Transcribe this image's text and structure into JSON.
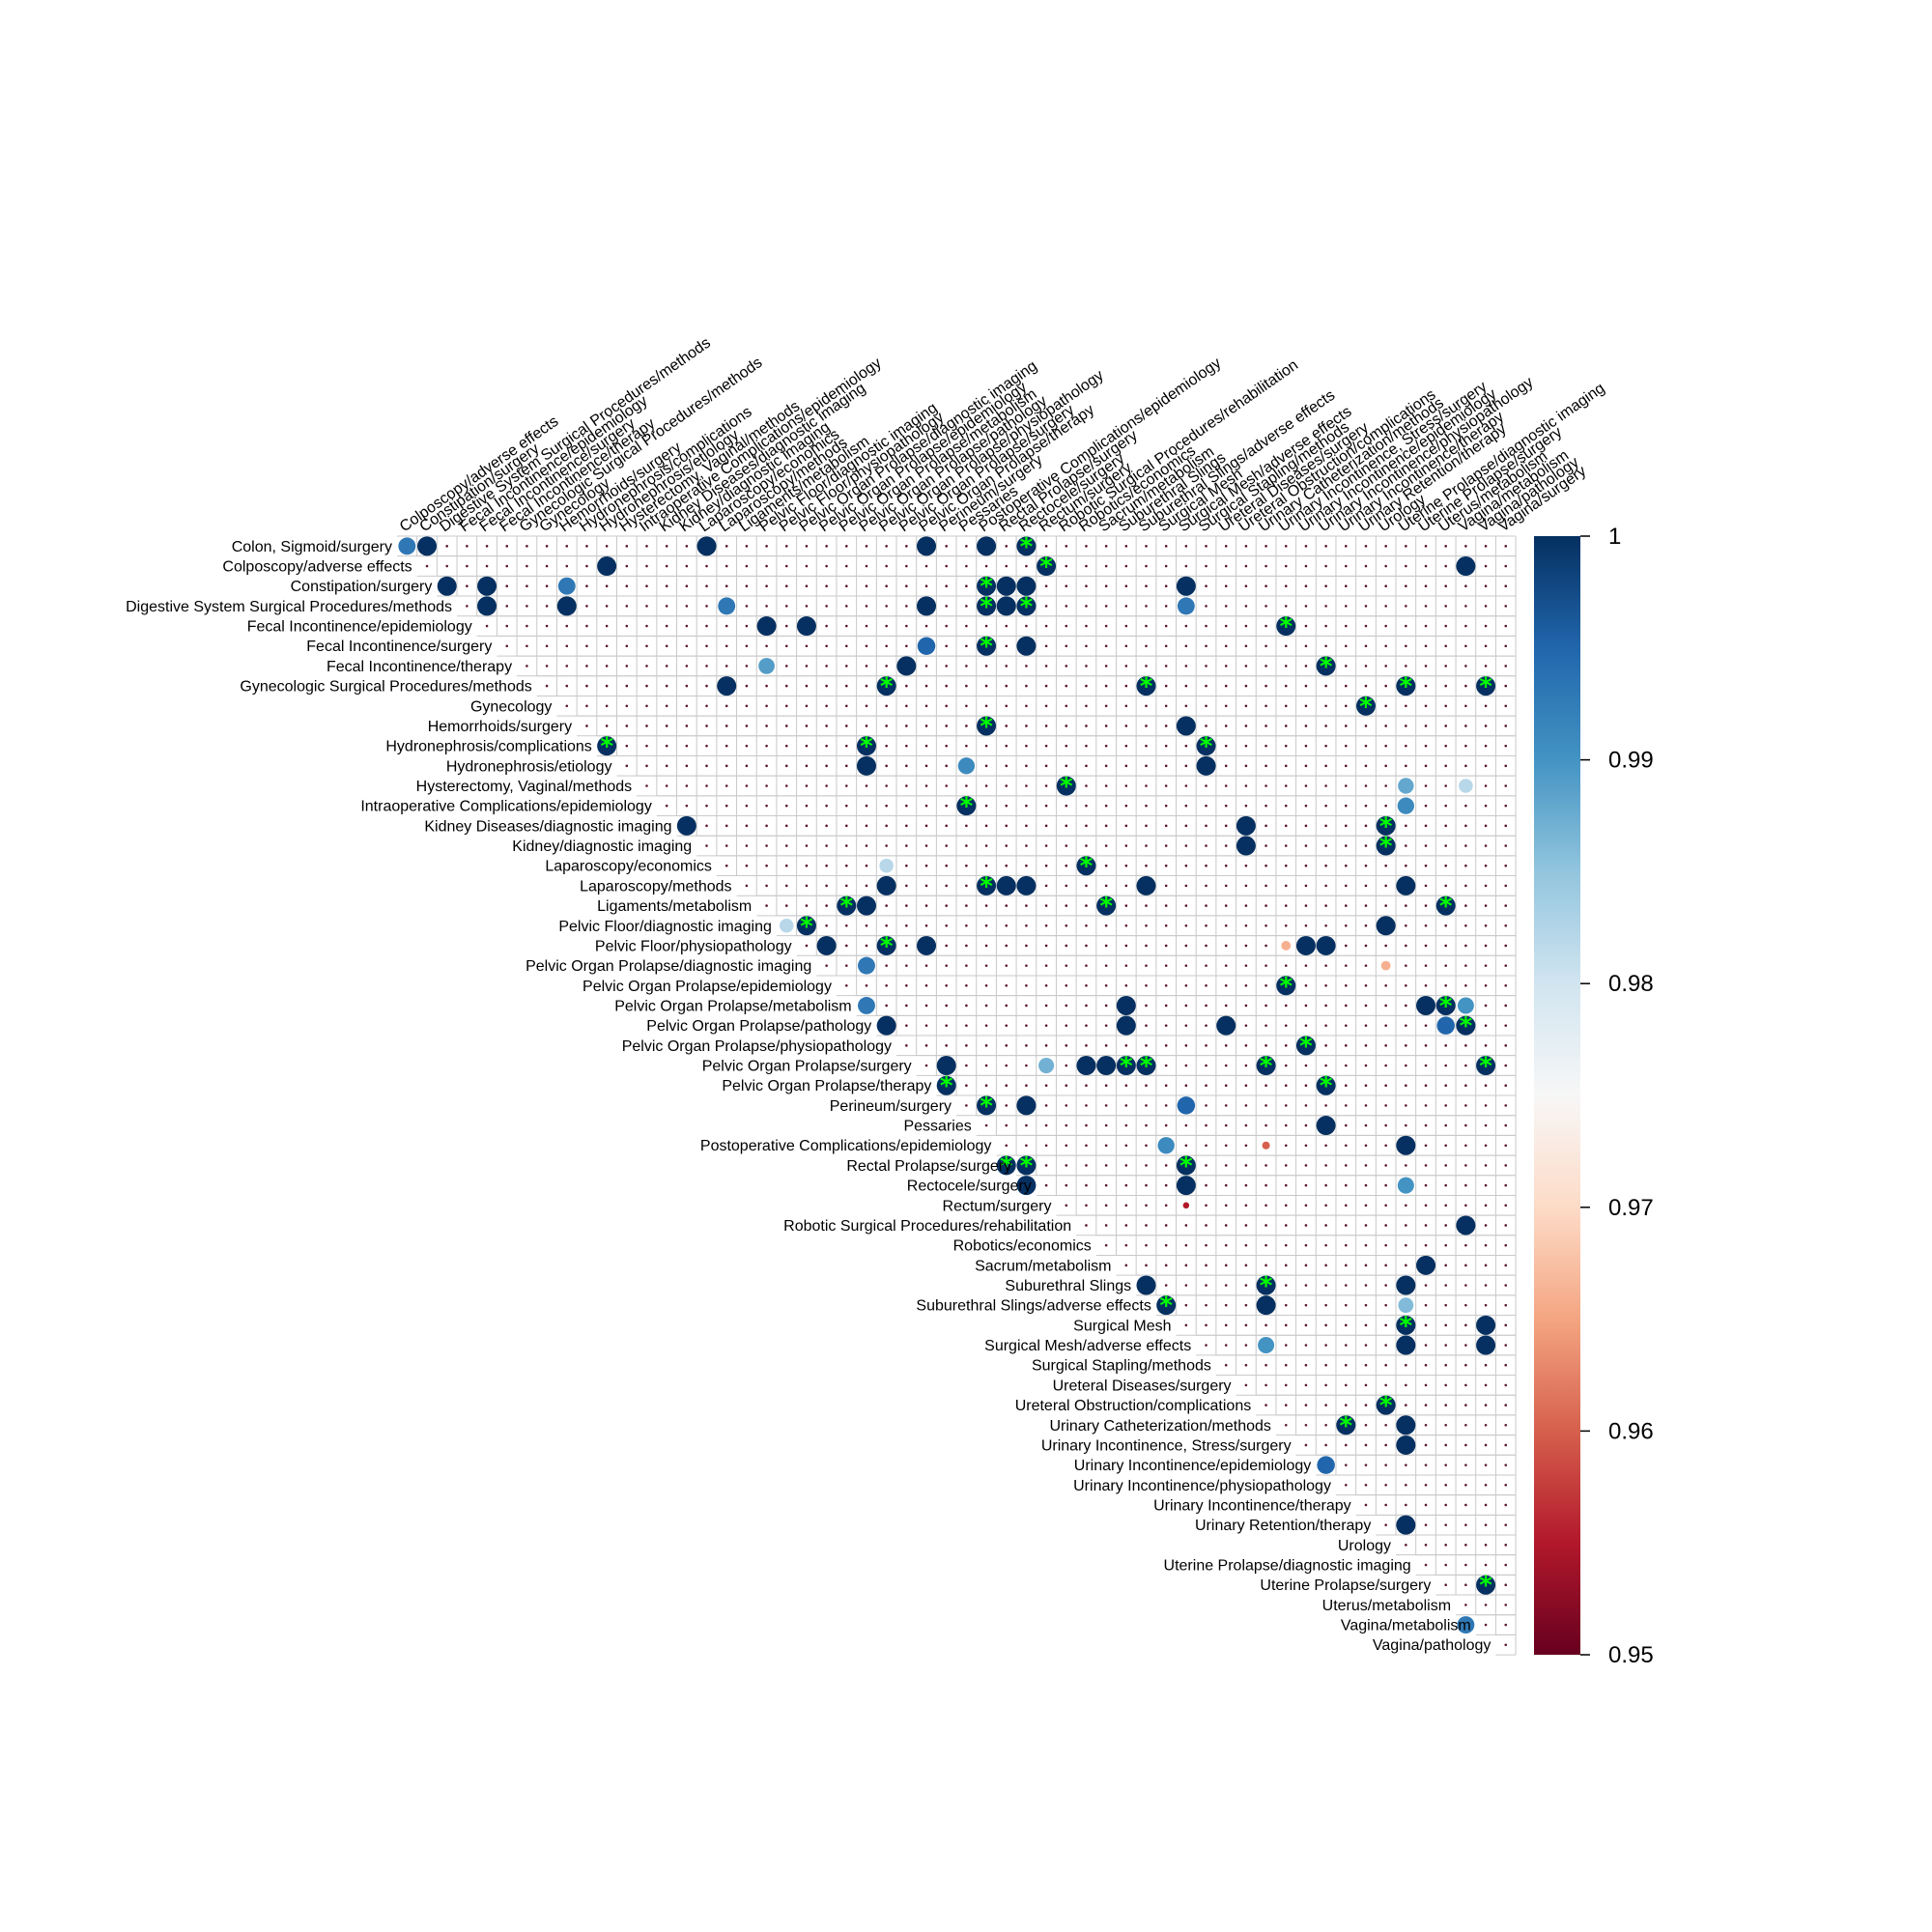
{
  "chart_data": {
    "type": "heatmap",
    "style": "upper-triangular correlation plot (circle size and color encode correlation value; asterisk marks significant cells; small dots mark remaining cells)",
    "row_labels": [
      "Colon, Sigmoid/surgery",
      "Colposcopy/adverse effects",
      "Constipation/surgery",
      "Digestive System Surgical Procedures/methods",
      "Fecal Incontinence/epidemiology",
      "Fecal Incontinence/surgery",
      "Fecal Incontinence/therapy",
      "Gynecologic Surgical Procedures/methods",
      "Gynecology",
      "Hemorrhoids/surgery",
      "Hydronephrosis/complications",
      "Hydronephrosis/etiology",
      "Hysterectomy, Vaginal/methods",
      "Intraoperative Complications/epidemiology",
      "Kidney Diseases/diagnostic imaging",
      "Kidney/diagnostic imaging",
      "Laparoscopy/economics",
      "Laparoscopy/methods",
      "Ligaments/metabolism",
      "Pelvic Floor/diagnostic imaging",
      "Pelvic Floor/physiopathology",
      "Pelvic Organ Prolapse/diagnostic imaging",
      "Pelvic Organ Prolapse/epidemiology",
      "Pelvic Organ Prolapse/metabolism",
      "Pelvic Organ Prolapse/pathology",
      "Pelvic Organ Prolapse/physiopathology",
      "Pelvic Organ Prolapse/surgery",
      "Pelvic Organ Prolapse/therapy",
      "Perineum/surgery",
      "Pessaries",
      "Postoperative Complications/epidemiology",
      "Rectal Prolapse/surgery",
      "Rectocele/surgery",
      "Rectum/surgery",
      "Robotic Surgical Procedures/rehabilitation",
      "Robotics/economics",
      "Sacrum/metabolism",
      "Suburethral Slings",
      "Suburethral Slings/adverse effects",
      "Surgical Mesh",
      "Surgical Mesh/adverse effects",
      "Surgical Stapling/methods",
      "Ureteral Diseases/surgery",
      "Ureteral Obstruction/complications",
      "Urinary Catheterization/methods",
      "Urinary Incontinence, Stress/surgery",
      "Urinary Incontinence/epidemiology",
      "Urinary Incontinence/physiopathology",
      "Urinary Incontinence/therapy",
      "Urinary Retention/therapy",
      "Urology",
      "Uterine Prolapse/diagnostic imaging",
      "Uterine Prolapse/surgery",
      "Uterus/metabolism",
      "Vagina/metabolism",
      "Vagina/pathology"
    ],
    "column_labels": [
      "Colposcopy/adverse effects",
      "Constipation/surgery",
      "Digestive System Surgical Procedures/methods",
      "Fecal Incontinence/epidemiology",
      "Fecal Incontinence/surgery",
      "Fecal Incontinence/therapy",
      "Gynecologic Surgical Procedures/methods",
      "Gynecology",
      "Hemorrhoids/surgery",
      "Hydronephrosis/complications",
      "Hydronephrosis/etiology",
      "Hysterectomy, Vaginal/methods",
      "Intraoperative Complications/epidemiology",
      "Kidney Diseases/diagnostic imaging",
      "Kidney/diagnostic imaging",
      "Laparoscopy/economics",
      "Laparoscopy/methods",
      "Ligaments/metabolism",
      "Pelvic Floor/diagnostic imaging",
      "Pelvic Floor/physiopathology",
      "Pelvic Organ Prolapse/diagnostic imaging",
      "Pelvic Organ Prolapse/epidemiology",
      "Pelvic Organ Prolapse/metabolism",
      "Pelvic Organ Prolapse/pathology",
      "Pelvic Organ Prolapse/physiopathology",
      "Pelvic Organ Prolapse/surgery",
      "Pelvic Organ Prolapse/therapy",
      "Perineum/surgery",
      "Pessaries",
      "Postoperative Complications/epidemiology",
      "Rectal Prolapse/surgery",
      "Rectocele/surgery",
      "Rectum/surgery",
      "Robotic Surgical Procedures/rehabilitation",
      "Robotics/economics",
      "Sacrum/metabolism",
      "Suburethral Slings",
      "Suburethral Slings/adverse effects",
      "Surgical Mesh",
      "Surgical Mesh/adverse effects",
      "Surgical Stapling/methods",
      "Ureteral Diseases/surgery",
      "Ureteral Obstruction/complications",
      "Urinary Catheterization/methods",
      "Urinary Incontinence, Stress/surgery",
      "Urinary Incontinence/epidemiology",
      "Urinary Incontinence/physiopathology",
      "Urinary Incontinence/therapy",
      "Urinary Retention/therapy",
      "Urology",
      "Uterine Prolapse/diagnostic imaging",
      "Uterine Prolapse/surgery",
      "Uterus/metabolism",
      "Vagina/metabolism",
      "Vagina/pathology",
      "Vagina/surgery"
    ],
    "cells": [
      {
        "row": 0,
        "col": 0,
        "value": 0.993,
        "sig": false
      },
      {
        "row": 0,
        "col": 1,
        "value": 1.0,
        "sig": false
      },
      {
        "row": 0,
        "col": 15,
        "value": 1.0,
        "sig": false
      },
      {
        "row": 0,
        "col": 26,
        "value": 1.0,
        "sig": false
      },
      {
        "row": 0,
        "col": 29,
        "value": 1.0,
        "sig": false
      },
      {
        "row": 0,
        "col": 31,
        "value": 1.0,
        "sig": true
      },
      {
        "row": 1,
        "col": 10,
        "value": 1.0,
        "sig": false
      },
      {
        "row": 1,
        "col": 32,
        "value": 1.0,
        "sig": true
      },
      {
        "row": 1,
        "col": 53,
        "value": 1.0,
        "sig": false
      },
      {
        "row": 2,
        "col": 2,
        "value": 1.0,
        "sig": false
      },
      {
        "row": 2,
        "col": 4,
        "value": 1.0,
        "sig": false
      },
      {
        "row": 2,
        "col": 8,
        "value": 0.993,
        "sig": false
      },
      {
        "row": 2,
        "col": 29,
        "value": 1.0,
        "sig": true
      },
      {
        "row": 2,
        "col": 30,
        "value": 1.0,
        "sig": false
      },
      {
        "row": 2,
        "col": 31,
        "value": 1.0,
        "sig": false
      },
      {
        "row": 2,
        "col": 39,
        "value": 1.0,
        "sig": false
      },
      {
        "row": 3,
        "col": 4,
        "value": 1.0,
        "sig": false
      },
      {
        "row": 3,
        "col": 8,
        "value": 1.0,
        "sig": false
      },
      {
        "row": 3,
        "col": 16,
        "value": 0.993,
        "sig": false
      },
      {
        "row": 3,
        "col": 26,
        "value": 1.0,
        "sig": false
      },
      {
        "row": 3,
        "col": 29,
        "value": 1.0,
        "sig": true
      },
      {
        "row": 3,
        "col": 30,
        "value": 1.0,
        "sig": false
      },
      {
        "row": 3,
        "col": 31,
        "value": 1.0,
        "sig": true
      },
      {
        "row": 3,
        "col": 39,
        "value": 0.993,
        "sig": false
      },
      {
        "row": 4,
        "col": 18,
        "value": 1.0,
        "sig": false
      },
      {
        "row": 4,
        "col": 20,
        "value": 1.0,
        "sig": false
      },
      {
        "row": 4,
        "col": 44,
        "value": 1.0,
        "sig": true
      },
      {
        "row": 5,
        "col": 26,
        "value": 0.995,
        "sig": false
      },
      {
        "row": 5,
        "col": 29,
        "value": 1.0,
        "sig": true
      },
      {
        "row": 5,
        "col": 31,
        "value": 1.0,
        "sig": false
      },
      {
        "row": 6,
        "col": 18,
        "value": 0.989,
        "sig": false
      },
      {
        "row": 6,
        "col": 25,
        "value": 1.0,
        "sig": false
      },
      {
        "row": 6,
        "col": 46,
        "value": 1.0,
        "sig": true
      },
      {
        "row": 7,
        "col": 16,
        "value": 1.0,
        "sig": false
      },
      {
        "row": 7,
        "col": 24,
        "value": 1.0,
        "sig": true
      },
      {
        "row": 7,
        "col": 37,
        "value": 1.0,
        "sig": true
      },
      {
        "row": 7,
        "col": 50,
        "value": 1.0,
        "sig": true
      },
      {
        "row": 7,
        "col": 54,
        "value": 1.0,
        "sig": true
      },
      {
        "row": 8,
        "col": 48,
        "value": 1.0,
        "sig": true
      },
      {
        "row": 9,
        "col": 29,
        "value": 1.0,
        "sig": true
      },
      {
        "row": 9,
        "col": 39,
        "value": 1.0,
        "sig": false
      },
      {
        "row": 10,
        "col": 10,
        "value": 1.0,
        "sig": true
      },
      {
        "row": 10,
        "col": 23,
        "value": 1.0,
        "sig": true
      },
      {
        "row": 10,
        "col": 40,
        "value": 1.0,
        "sig": true
      },
      {
        "row": 11,
        "col": 23,
        "value": 1.0,
        "sig": false
      },
      {
        "row": 11,
        "col": 28,
        "value": 0.991,
        "sig": false
      },
      {
        "row": 11,
        "col": 40,
        "value": 1.0,
        "sig": false
      },
      {
        "row": 12,
        "col": 33,
        "value": 1.0,
        "sig": true
      },
      {
        "row": 12,
        "col": 50,
        "value": 0.988,
        "sig": false
      },
      {
        "row": 12,
        "col": 53,
        "value": 0.982,
        "sig": false
      },
      {
        "row": 13,
        "col": 28,
        "value": 1.0,
        "sig": true
      },
      {
        "row": 13,
        "col": 50,
        "value": 0.991,
        "sig": false
      },
      {
        "row": 14,
        "col": 14,
        "value": 1.0,
        "sig": false
      },
      {
        "row": 14,
        "col": 42,
        "value": 1.0,
        "sig": false
      },
      {
        "row": 14,
        "col": 49,
        "value": 1.0,
        "sig": true
      },
      {
        "row": 15,
        "col": 42,
        "value": 1.0,
        "sig": false
      },
      {
        "row": 15,
        "col": 49,
        "value": 1.0,
        "sig": true
      },
      {
        "row": 16,
        "col": 24,
        "value": 0.982,
        "sig": false
      },
      {
        "row": 16,
        "col": 34,
        "value": 1.0,
        "sig": true
      },
      {
        "row": 17,
        "col": 24,
        "value": 1.0,
        "sig": false
      },
      {
        "row": 17,
        "col": 29,
        "value": 1.0,
        "sig": true
      },
      {
        "row": 17,
        "col": 30,
        "value": 1.0,
        "sig": false
      },
      {
        "row": 17,
        "col": 31,
        "value": 1.0,
        "sig": false
      },
      {
        "row": 17,
        "col": 37,
        "value": 1.0,
        "sig": false
      },
      {
        "row": 17,
        "col": 50,
        "value": 1.0,
        "sig": false
      },
      {
        "row": 18,
        "col": 22,
        "value": 1.0,
        "sig": true
      },
      {
        "row": 18,
        "col": 23,
        "value": 1.0,
        "sig": false
      },
      {
        "row": 18,
        "col": 35,
        "value": 1.0,
        "sig": true
      },
      {
        "row": 18,
        "col": 52,
        "value": 1.0,
        "sig": true
      },
      {
        "row": 19,
        "col": 19,
        "value": 0.982,
        "sig": false
      },
      {
        "row": 19,
        "col": 20,
        "value": 1.0,
        "sig": true
      },
      {
        "row": 19,
        "col": 49,
        "value": 1.0,
        "sig": false
      },
      {
        "row": 20,
        "col": 21,
        "value": 1.0,
        "sig": false
      },
      {
        "row": 20,
        "col": 24,
        "value": 1.0,
        "sig": true
      },
      {
        "row": 20,
        "col": 26,
        "value": 1.0,
        "sig": false
      },
      {
        "row": 20,
        "col": 44,
        "value": 0.966,
        "sig": false
      },
      {
        "row": 20,
        "col": 45,
        "value": 1.0,
        "sig": false
      },
      {
        "row": 20,
        "col": 46,
        "value": 1.0,
        "sig": false
      },
      {
        "row": 21,
        "col": 23,
        "value": 0.993,
        "sig": false
      },
      {
        "row": 21,
        "col": 49,
        "value": 0.966,
        "sig": false
      },
      {
        "row": 22,
        "col": 44,
        "value": 1.0,
        "sig": true
      },
      {
        "row": 23,
        "col": 23,
        "value": 0.993,
        "sig": false
      },
      {
        "row": 23,
        "col": 36,
        "value": 1.0,
        "sig": false
      },
      {
        "row": 23,
        "col": 51,
        "value": 1.0,
        "sig": false
      },
      {
        "row": 23,
        "col": 52,
        "value": 1.0,
        "sig": true
      },
      {
        "row": 23,
        "col": 53,
        "value": 0.99,
        "sig": false
      },
      {
        "row": 24,
        "col": 24,
        "value": 1.0,
        "sig": false
      },
      {
        "row": 24,
        "col": 36,
        "value": 1.0,
        "sig": false
      },
      {
        "row": 24,
        "col": 41,
        "value": 1.0,
        "sig": false
      },
      {
        "row": 24,
        "col": 52,
        "value": 0.995,
        "sig": false
      },
      {
        "row": 24,
        "col": 53,
        "value": 1.0,
        "sig": true
      },
      {
        "row": 25,
        "col": 45,
        "value": 1.0,
        "sig": true
      },
      {
        "row": 26,
        "col": 27,
        "value": 1.0,
        "sig": false
      },
      {
        "row": 26,
        "col": 32,
        "value": 0.987,
        "sig": false
      },
      {
        "row": 26,
        "col": 34,
        "value": 1.0,
        "sig": false
      },
      {
        "row": 26,
        "col": 35,
        "value": 1.0,
        "sig": false
      },
      {
        "row": 26,
        "col": 36,
        "value": 1.0,
        "sig": true
      },
      {
        "row": 26,
        "col": 37,
        "value": 1.0,
        "sig": true
      },
      {
        "row": 26,
        "col": 43,
        "value": 1.0,
        "sig": true
      },
      {
        "row": 26,
        "col": 54,
        "value": 1.0,
        "sig": true
      },
      {
        "row": 27,
        "col": 27,
        "value": 1.0,
        "sig": true
      },
      {
        "row": 27,
        "col": 46,
        "value": 1.0,
        "sig": true
      },
      {
        "row": 28,
        "col": 29,
        "value": 1.0,
        "sig": true
      },
      {
        "row": 28,
        "col": 31,
        "value": 1.0,
        "sig": false
      },
      {
        "row": 28,
        "col": 39,
        "value": 0.995,
        "sig": false
      },
      {
        "row": 29,
        "col": 46,
        "value": 1.0,
        "sig": false
      },
      {
        "row": 30,
        "col": 38,
        "value": 0.991,
        "sig": false
      },
      {
        "row": 30,
        "col": 43,
        "value": 0.96,
        "sig": false
      },
      {
        "row": 30,
        "col": 50,
        "value": 1.0,
        "sig": false
      },
      {
        "row": 31,
        "col": 30,
        "value": 1.0,
        "sig": true
      },
      {
        "row": 31,
        "col": 31,
        "value": 1.0,
        "sig": true
      },
      {
        "row": 31,
        "col": 39,
        "value": 1.0,
        "sig": true
      },
      {
        "row": 32,
        "col": 31,
        "value": 1.0,
        "sig": false
      },
      {
        "row": 32,
        "col": 39,
        "value": 1.0,
        "sig": false
      },
      {
        "row": 32,
        "col": 50,
        "value": 0.99,
        "sig": false
      },
      {
        "row": 33,
        "col": 39,
        "value": 0.955,
        "sig": false
      },
      {
        "row": 34,
        "col": 53,
        "value": 1.0,
        "sig": false
      },
      {
        "row": 36,
        "col": 51,
        "value": 1.0,
        "sig": false
      },
      {
        "row": 37,
        "col": 37,
        "value": 1.0,
        "sig": false
      },
      {
        "row": 37,
        "col": 43,
        "value": 1.0,
        "sig": true
      },
      {
        "row": 37,
        "col": 50,
        "value": 1.0,
        "sig": false
      },
      {
        "row": 38,
        "col": 38,
        "value": 1.0,
        "sig": true
      },
      {
        "row": 38,
        "col": 43,
        "value": 1.0,
        "sig": false
      },
      {
        "row": 38,
        "col": 50,
        "value": 0.986,
        "sig": false
      },
      {
        "row": 39,
        "col": 50,
        "value": 1.0,
        "sig": true
      },
      {
        "row": 39,
        "col": 54,
        "value": 1.0,
        "sig": false
      },
      {
        "row": 40,
        "col": 43,
        "value": 0.99,
        "sig": false
      },
      {
        "row": 40,
        "col": 50,
        "value": 1.0,
        "sig": false
      },
      {
        "row": 40,
        "col": 54,
        "value": 1.0,
        "sig": false
      },
      {
        "row": 43,
        "col": 49,
        "value": 1.0,
        "sig": true
      },
      {
        "row": 44,
        "col": 47,
        "value": 1.0,
        "sig": true
      },
      {
        "row": 44,
        "col": 50,
        "value": 1.0,
        "sig": false
      },
      {
        "row": 45,
        "col": 50,
        "value": 1.0,
        "sig": false
      },
      {
        "row": 46,
        "col": 46,
        "value": 0.995,
        "sig": false
      },
      {
        "row": 49,
        "col": 50,
        "value": 1.0,
        "sig": false
      },
      {
        "row": 52,
        "col": 54,
        "value": 1.0,
        "sig": true
      },
      {
        "row": 54,
        "col": 53,
        "value": 0.993,
        "sig": false
      }
    ],
    "colorbar": {
      "range": [
        0.95,
        1
      ],
      "tick_labels": [
        "1",
        "0.99",
        "0.98",
        "0.97",
        "0.96",
        "0.95"
      ],
      "ticks": [
        1,
        0.99,
        0.98,
        0.97,
        0.96,
        0.95
      ],
      "colors": [
        "#67001f",
        "#b2182b",
        "#d6604d",
        "#f4a582",
        "#fddbc7",
        "#f7f7f7",
        "#d1e5f0",
        "#92c5de",
        "#4393c3",
        "#2166ac",
        "#053061"
      ]
    },
    "significance_marker": "*",
    "marker_color": "#00ff00",
    "grid": true
  }
}
